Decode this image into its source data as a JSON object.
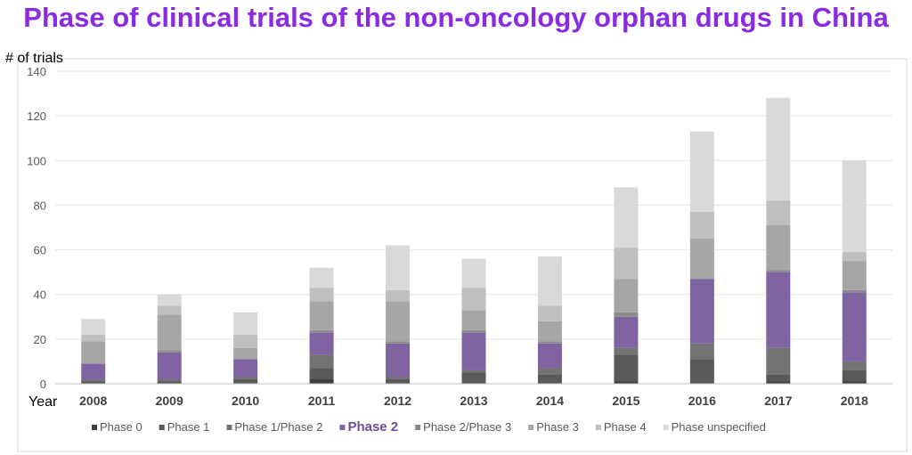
{
  "title": "Phase of clinical trials of the non-oncology orphan drugs in China",
  "chart_data": {
    "type": "bar",
    "stacked": true,
    "title": "Phase of clinical trials of the non-oncology orphan drugs in China",
    "xlabel": "Year",
    "ylabel": "# of trials",
    "ylim": [
      0,
      140
    ],
    "yticks": [
      0,
      20,
      40,
      60,
      80,
      100,
      120,
      140
    ],
    "grid": true,
    "legend_position": "bottom",
    "categories": [
      "2008",
      "2009",
      "2010",
      "2011",
      "2012",
      "2013",
      "2014",
      "2015",
      "2016",
      "2017",
      "2018"
    ],
    "series": [
      {
        "name": "Phase 0",
        "color": "#404040",
        "values": [
          0,
          0,
          0,
          2,
          0,
          0,
          0,
          1,
          0,
          1,
          1
        ]
      },
      {
        "name": "Phase 1",
        "color": "#595959",
        "values": [
          1,
          1,
          2,
          5,
          2,
          5,
          4,
          12,
          11,
          3,
          5
        ]
      },
      {
        "name": "Phase 1/Phase 2",
        "color": "#737373",
        "values": [
          1,
          1,
          1,
          6,
          1,
          1,
          3,
          3,
          7,
          12,
          4
        ]
      },
      {
        "name": "Phase 2",
        "color": "#8064a2",
        "bold": true,
        "values": [
          7,
          12,
          8,
          10,
          15,
          17,
          11,
          14,
          29,
          34,
          31
        ]
      },
      {
        "name": "Phase 2/Phase 3",
        "color": "#8c8c8c",
        "values": [
          0,
          1,
          0,
          1,
          1,
          1,
          1,
          2,
          0,
          1,
          1
        ]
      },
      {
        "name": "Phase 3",
        "color": "#a6a6a6",
        "values": [
          10,
          16,
          5,
          13,
          18,
          9,
          9,
          15,
          18,
          20,
          13
        ]
      },
      {
        "name": "Phase 4",
        "color": "#bfbfbf",
        "values": [
          3,
          4,
          6,
          6,
          5,
          10,
          7,
          14,
          12,
          11,
          4
        ]
      },
      {
        "name": "Phase unspecified",
        "color": "#d9d9d9",
        "values": [
          7,
          5,
          10,
          9,
          20,
          13,
          22,
          27,
          36,
          46,
          41
        ]
      }
    ]
  }
}
